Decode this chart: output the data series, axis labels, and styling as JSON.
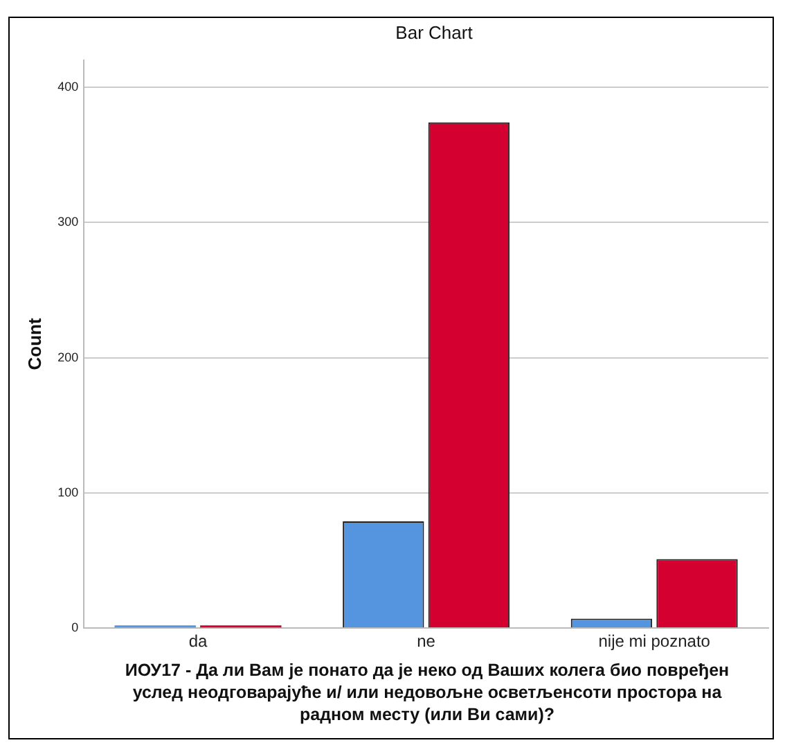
{
  "chart_data": {
    "type": "bar",
    "title": "Bar Chart",
    "xlabel": "ИОУ17 - Да ли Вам је понато да је неко од Ваших колега био повређен услед неодговарајуће и/ или недовољне осветљенсоти простора на радном месту (или Ви сами)?",
    "ylabel": "Count",
    "categories": [
      "da",
      "ne",
      "nije mi poznato"
    ],
    "series": [
      {
        "color": "#5595e0",
        "values": [
          2,
          79,
          7
        ]
      },
      {
        "color": "#d4002f",
        "values": [
          2,
          374,
          51
        ]
      }
    ],
    "ylim": [
      0,
      420
    ],
    "yticks": [
      0,
      100,
      200,
      300,
      400
    ],
    "grid": "y",
    "legend": false
  }
}
